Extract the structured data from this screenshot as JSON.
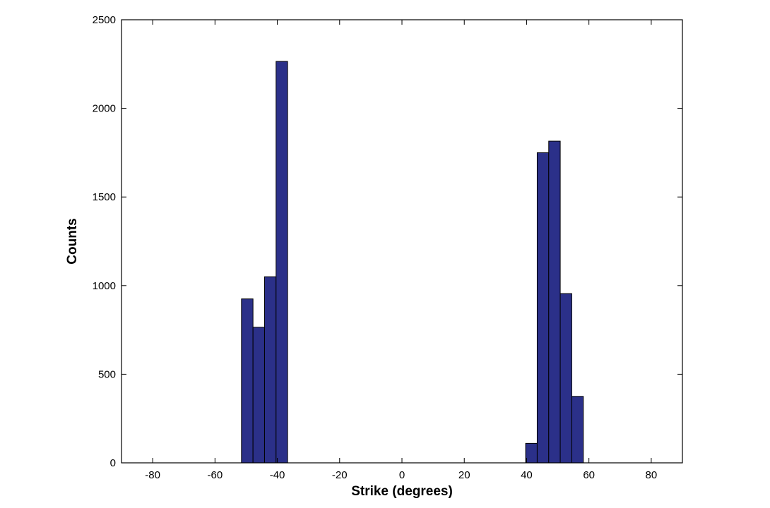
{
  "chart_data": {
    "type": "bar",
    "subtype": "histogram",
    "xlabel": "Strike (degrees)",
    "ylabel": "Counts",
    "xlim": [
      -90,
      90
    ],
    "ylim": [
      0,
      2500
    ],
    "x_ticks": [
      -80,
      -60,
      -40,
      -20,
      0,
      20,
      40,
      60,
      80
    ],
    "y_ticks": [
      0,
      500,
      1000,
      1500,
      2000,
      2500
    ],
    "grid": false,
    "bar_color": "#2b3089",
    "bins": [
      {
        "x0": -51.5,
        "x1": -47.8,
        "value": 925
      },
      {
        "x0": -47.8,
        "x1": -44.1,
        "value": 765
      },
      {
        "x0": -44.1,
        "x1": -40.4,
        "value": 1050
      },
      {
        "x0": -40.4,
        "x1": -36.7,
        "value": 2265
      },
      {
        "x0": 39.7,
        "x1": 43.4,
        "value": 110
      },
      {
        "x0": 43.4,
        "x1": 47.1,
        "value": 1750
      },
      {
        "x0": 47.1,
        "x1": 50.8,
        "value": 1815
      },
      {
        "x0": 50.8,
        "x1": 54.5,
        "value": 955
      },
      {
        "x0": 54.5,
        "x1": 58.2,
        "value": 375
      }
    ]
  }
}
